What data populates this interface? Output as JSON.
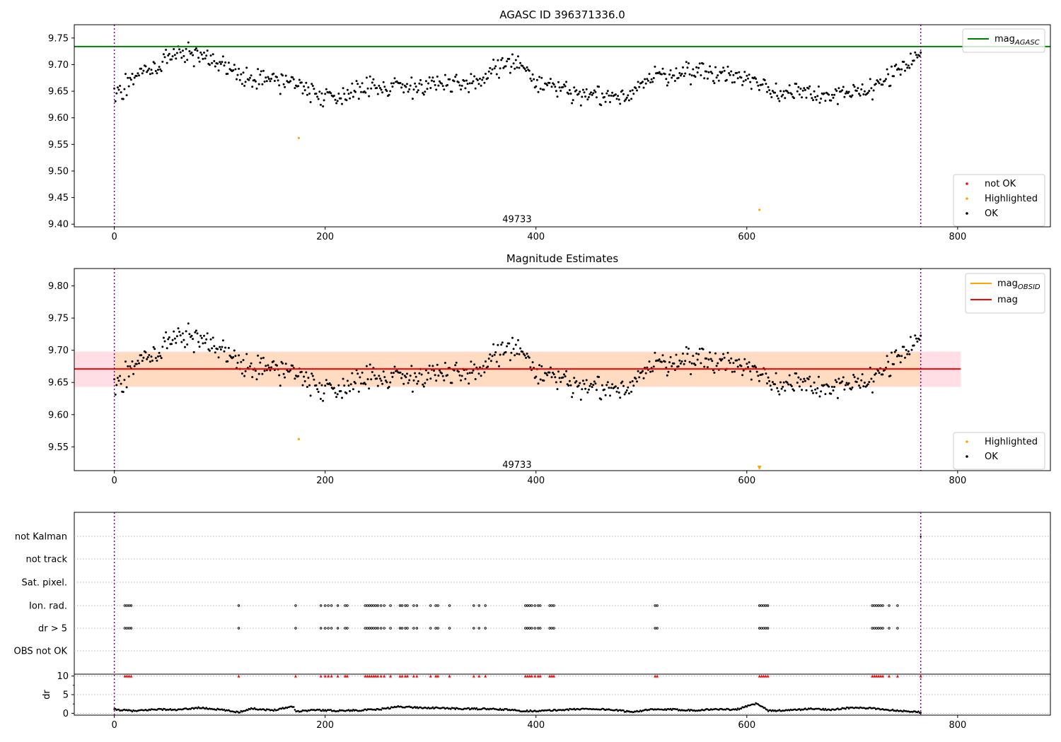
{
  "colors": {
    "agasc_line": "#008000",
    "obsid_line": "#FFA500",
    "mag_line": "#FF0000",
    "band_outer": "#FFC0CB",
    "band_inner": "#FFDAB9",
    "ok": "#000000",
    "highlighted": "#FFA500",
    "not_ok": "#FF0000",
    "boundary": "#800080"
  },
  "chart_data": [
    {
      "id": "panel1",
      "type": "scatter",
      "title": "AGASC ID 396371336.0",
      "xlim": [
        -38,
        888
      ],
      "ylim": [
        9.395,
        9.775
      ],
      "xticks": [
        0,
        200,
        400,
        600,
        800
      ],
      "yticks": [
        9.4,
        9.45,
        9.5,
        9.55,
        9.6,
        9.65,
        9.7,
        9.75
      ],
      "ytick_labels": [
        "9.40",
        "9.45",
        "9.50",
        "9.55",
        "9.60",
        "9.65",
        "9.70",
        "9.75"
      ],
      "hlines": [
        {
          "name": "mag_AGASC",
          "y": 9.734,
          "color": "#008000",
          "x_range": [
            -38,
            888
          ]
        }
      ],
      "vlines": [
        0,
        765
      ],
      "annotation": {
        "text": "49733",
        "x": 382,
        "y": 9.409
      },
      "legend_lines": {
        "placement": "upper right",
        "entries": [
          {
            "label": "mag",
            "sub": "AGASC",
            "color": "#008000"
          }
        ]
      },
      "legend_points": {
        "placement": "lower right",
        "entries": [
          {
            "label": "not OK",
            "color": "#FF0000"
          },
          {
            "label": "Highlighted",
            "color": "#FFA500"
          },
          {
            "label": "OK",
            "color": "#000000"
          }
        ]
      },
      "highlighted_points": [
        [
          175,
          9.562
        ],
        [
          612,
          9.427
        ]
      ],
      "ok_trend_x": [
        0,
        10,
        20,
        30,
        40,
        50,
        60,
        70,
        80,
        90,
        100,
        110,
        120,
        130,
        140,
        150,
        160,
        170,
        180,
        190,
        200,
        210,
        220,
        230,
        240,
        250,
        260,
        270,
        280,
        290,
        300,
        310,
        320,
        330,
        340,
        350,
        360,
        370,
        380,
        390,
        400,
        410,
        420,
        430,
        440,
        450,
        460,
        470,
        480,
        490,
        500,
        510,
        520,
        530,
        540,
        550,
        560,
        570,
        580,
        590,
        600,
        610,
        620,
        630,
        640,
        650,
        660,
        670,
        680,
        690,
        700,
        710,
        720,
        730,
        740,
        750,
        765
      ],
      "ok_trend_y": [
        9.645,
        9.66,
        9.68,
        9.69,
        9.69,
        9.715,
        9.725,
        9.715,
        9.72,
        9.705,
        9.695,
        9.69,
        9.685,
        9.675,
        9.67,
        9.675,
        9.67,
        9.665,
        9.66,
        9.65,
        9.64,
        9.638,
        9.645,
        9.66,
        9.66,
        9.655,
        9.66,
        9.66,
        9.66,
        9.66,
        9.665,
        9.665,
        9.66,
        9.66,
        9.66,
        9.675,
        9.695,
        9.7,
        9.705,
        9.69,
        9.665,
        9.66,
        9.655,
        9.65,
        9.64,
        9.64,
        9.64,
        9.635,
        9.64,
        9.65,
        9.665,
        9.675,
        9.68,
        9.685,
        9.685,
        9.69,
        9.685,
        9.685,
        9.68,
        9.68,
        9.675,
        9.665,
        9.655,
        9.645,
        9.65,
        9.655,
        9.655,
        9.64,
        9.64,
        9.64,
        9.645,
        9.65,
        9.66,
        9.675,
        9.68,
        9.7,
        9.71
      ],
      "ok_spread": 0.014,
      "ok_count": 720
    },
    {
      "id": "panel2",
      "type": "scatter",
      "title": "Magnitude Estimates",
      "xlim": [
        -38,
        888
      ],
      "ylim": [
        9.513,
        9.827
      ],
      "xticks": [
        0,
        200,
        400,
        600,
        800
      ],
      "yticks": [
        9.55,
        9.6,
        9.65,
        9.7,
        9.75,
        9.8
      ],
      "ytick_labels": [
        "9.55",
        "9.60",
        "9.65",
        "9.70",
        "9.75",
        "9.80"
      ],
      "mag_line": {
        "y": 9.671,
        "x_range": [
          -38,
          803
        ]
      },
      "band_outer": [
        9.643,
        9.698
      ],
      "band_inner": [
        9.644,
        9.697
      ],
      "vlines": [
        0,
        765
      ],
      "annotation": {
        "text": "49733",
        "x": 382,
        "y": 9.522
      },
      "legend_lines": {
        "placement": "upper right",
        "entries": [
          {
            "label": "mag",
            "sub": "OBSID",
            "color": "#FFA500"
          },
          {
            "label": "mag",
            "sub": "",
            "color": "#FF0000"
          }
        ]
      },
      "legend_points": {
        "placement": "lower right",
        "entries": [
          {
            "label": "Highlighted",
            "color": "#FFA500"
          },
          {
            "label": "OK",
            "color": "#000000"
          }
        ]
      },
      "highlighted_points": [
        [
          175,
          9.562
        ]
      ],
      "offscale_marker": {
        "x": 612,
        "y": 9.516
      }
    },
    {
      "id": "panel3",
      "type": "scatter",
      "xlim": [
        -38,
        888
      ],
      "xticks": [
        0,
        200,
        400,
        600,
        800
      ],
      "flag_rows": [
        "not Kalman",
        "not track",
        "Sat. pixel.",
        "Ion. rad.",
        "dr > 5",
        "OBS not OK"
      ],
      "flag_x": [
        10,
        12,
        14,
        16,
        118,
        172,
        196,
        200,
        203,
        206,
        212,
        219,
        221,
        238,
        240,
        242,
        244,
        246,
        248,
        250,
        253,
        256,
        262,
        271,
        273,
        276,
        278,
        284,
        287,
        300,
        305,
        307,
        318,
        341,
        346,
        352,
        390,
        392,
        394,
        396,
        399,
        402,
        404,
        413,
        415,
        417,
        513,
        515,
        612,
        614,
        616,
        618,
        620,
        719,
        721,
        723,
        725,
        727,
        729,
        735,
        743
      ],
      "not_kalman_x": [
        765
      ],
      "dr_axis": {
        "ylabel": "dr",
        "ylim": [
          -0.5,
          10.5
        ],
        "yticks": [
          0,
          5,
          10
        ],
        "minor_ticks": [
          2.5,
          7.5
        ]
      },
      "dr_capped_value": 10,
      "dr_trend_x": [
        0,
        20,
        40,
        60,
        80,
        100,
        118,
        130,
        150,
        170,
        172,
        190,
        210,
        230,
        250,
        270,
        290,
        310,
        330,
        350,
        370,
        390,
        410,
        430,
        450,
        470,
        490,
        510,
        530,
        550,
        570,
        590,
        610,
        620,
        640,
        660,
        680,
        700,
        720,
        740,
        765
      ],
      "dr_trend_y": [
        1.0,
        0.6,
        1.1,
        0.9,
        1.5,
        1.0,
        0.3,
        1.3,
        0.8,
        1.9,
        0.5,
        0.9,
        0.7,
        0.8,
        1.0,
        1.8,
        1.5,
        1.4,
        1.2,
        1.2,
        1.0,
        0.6,
        0.7,
        1.0,
        1.2,
        1.0,
        0.4,
        1.0,
        1.0,
        0.8,
        1.1,
        1.0,
        2.7,
        0.7,
        0.8,
        1.2,
        1.0,
        1.5,
        1.3,
        0.8,
        0.3
      ],
      "vlines": [
        0,
        765
      ]
    }
  ]
}
